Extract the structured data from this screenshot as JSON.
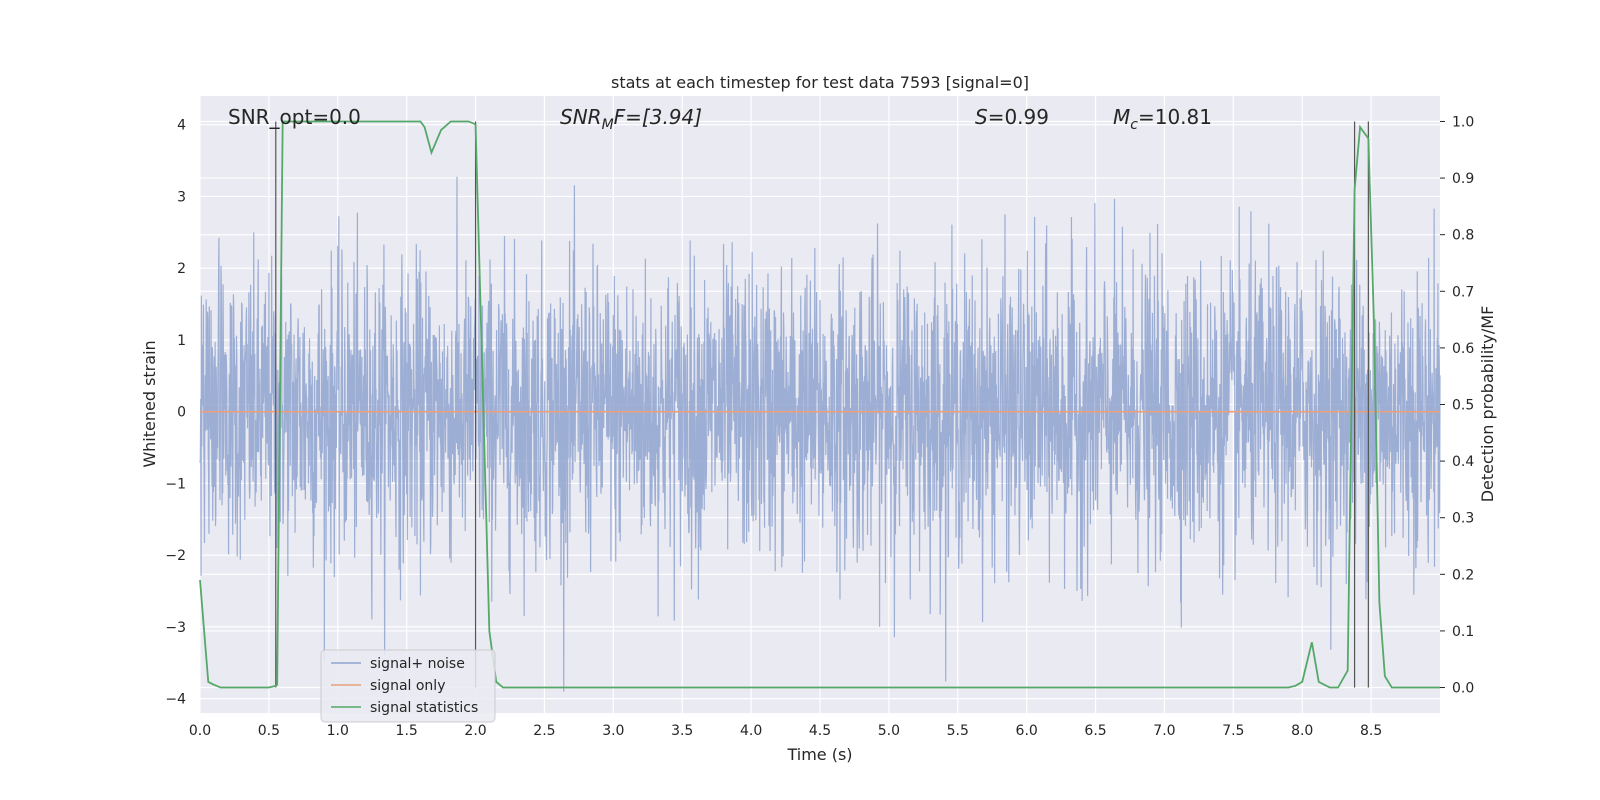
{
  "chart_data": {
    "type": "line",
    "title": "stats at each timestep for test data 7593 [signal=0]",
    "xlabel": "Time (s)",
    "ylabel_left": "Whitened strain",
    "ylabel_right": "Detection probability/MF",
    "xlim": [
      0.0,
      9.0
    ],
    "ylim_left": [
      -4.2,
      4.4
    ],
    "ylim_right": [
      -0.045,
      1.045
    ],
    "x_ticks": [
      "0.0",
      "0.5",
      "1.0",
      "1.5",
      "2.0",
      "2.5",
      "3.0",
      "3.5",
      "4.0",
      "4.5",
      "5.0",
      "5.5",
      "6.0",
      "6.5",
      "7.0",
      "7.5",
      "8.0",
      "8.5"
    ],
    "y_left_ticks": [
      "4",
      "3",
      "2",
      "1",
      "0",
      "−1",
      "−2",
      "−3",
      "−4"
    ],
    "y_right_ticks": [
      "1.0",
      "0.9",
      "0.8",
      "0.7",
      "0.6",
      "0.5",
      "0.4",
      "0.3",
      "0.2",
      "0.1",
      "0.0"
    ],
    "grid": true,
    "legend_position": "lower-left",
    "annotations": {
      "snr_opt": "SNR_opt=0.0",
      "snr_mf_base": "SNR",
      "snr_mf_sub": "M",
      "snr_mf_rest": "F=[3.94]",
      "s_base": "S",
      "s_rest": "=0.99",
      "mc_base": "M",
      "mc_sub": "c",
      "mc_rest": "=10.81"
    },
    "series": [
      {
        "name": "signal+ noise",
        "color": "#8fa3cf",
        "axis": "left",
        "noise_model": {
          "mean": 0.0,
          "std": 1.0,
          "sample_rate_hz": 400,
          "clip": [
            -3.9,
            4.0
          ]
        }
      },
      {
        "name": "signal only",
        "color": "#e8a07e",
        "axis": "left",
        "x": [
          0.0,
          9.0
        ],
        "y": [
          0.0,
          0.0
        ]
      },
      {
        "name": "signal statistics",
        "color": "#55a868",
        "axis": "right",
        "x": [
          0.0,
          0.03,
          0.06,
          0.1,
          0.15,
          0.2,
          0.3,
          0.4,
          0.5,
          0.55,
          0.56,
          0.6,
          0.65,
          0.7,
          0.8,
          0.9,
          1.0,
          1.2,
          1.4,
          1.6,
          1.63,
          1.68,
          1.75,
          1.82,
          1.9,
          1.95,
          2.0,
          2.05,
          2.1,
          2.15,
          2.2,
          2.3,
          2.5,
          3.0,
          4.0,
          5.0,
          6.0,
          7.0,
          7.9,
          7.95,
          8.0,
          8.07,
          8.12,
          8.2,
          8.26,
          8.33,
          8.38,
          8.42,
          8.48,
          8.52,
          8.56,
          8.6,
          8.65,
          8.7,
          8.8,
          8.9,
          9.0
        ],
        "y": [
          0.19,
          0.1,
          0.01,
          0.005,
          0.0,
          0.0,
          0.0,
          0.0,
          0.0,
          0.003,
          0.005,
          1.0,
          1.0,
          1.0,
          1.0,
          1.0,
          1.0,
          1.0,
          1.0,
          1.0,
          0.99,
          0.945,
          0.985,
          1.0,
          1.0,
          1.0,
          0.995,
          0.55,
          0.1,
          0.01,
          0.0,
          0.0,
          0.0,
          0.0,
          0.0,
          0.0,
          0.0,
          0.0,
          0.0,
          0.003,
          0.01,
          0.08,
          0.01,
          0.0,
          0.0,
          0.03,
          0.88,
          0.99,
          0.97,
          0.65,
          0.15,
          0.02,
          0.0,
          0.0,
          0.0,
          0.0,
          0.0
        ]
      }
    ],
    "vertical_markers": [
      0.55,
      2.0,
      8.38,
      8.48
    ]
  }
}
